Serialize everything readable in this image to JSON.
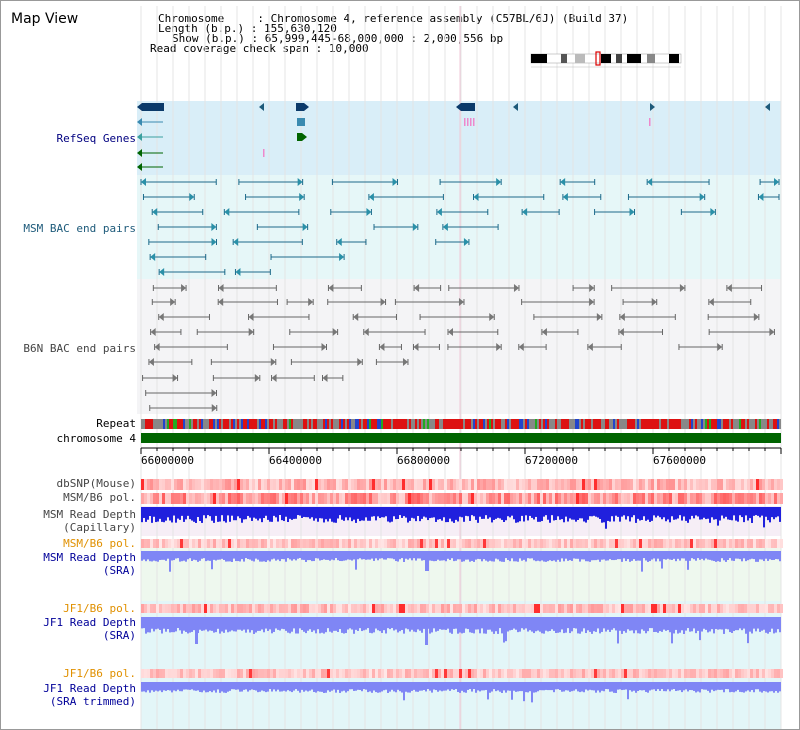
{
  "title": "Map View",
  "info": {
    "chromosome_label": "Chromosome",
    "chromosome_value": "Chromosome 4, reference assembly (C57BL/6J) (Build 37)",
    "length_label": "Length (b.p.)",
    "length_value": "155,630,120",
    "show_label": "Show (b.p.)",
    "show_value": "65,999,445-68,000,000 : 2,000,556 bp",
    "coverage_label": "Read coverage check span",
    "coverage_value": "10,000"
  },
  "tracks": {
    "refseq": "RefSeq Genes",
    "msm_bac": "MSM BAC end pairs",
    "b6n_bac": "B6N BAC end pairs",
    "repeat": "Repeat",
    "chromosome": "chromosome 4",
    "dbsnp": "dbSNP(Mouse)",
    "msm_b6_pol_1": "MSM/B6 pol.",
    "msm_read_depth_cap_1": "MSM Read Depth",
    "msm_read_depth_cap_2": "(Capillary)",
    "msm_b6_pol_2": "MSM/B6 pol.",
    "msm_read_depth_sra_1": "MSM Read Depth",
    "msm_read_depth_sra_2": "(SRA)",
    "jf1_b6_pol_1": "JF1/B6 pol.",
    "jf1_read_depth_sra_1": "JF1 Read Depth",
    "jf1_read_depth_sra_2": "(SRA)",
    "jf1_b6_pol_2": "JF1/B6 pol.",
    "jf1_read_depth_trim_1": "JF1 Read Depth",
    "jf1_read_depth_trim_2": "(SRA trimmed)"
  },
  "axis": {
    "ticks": [
      "66000000",
      "66400000",
      "66800000",
      "67200000",
      "67600000"
    ],
    "range": [
      65999445,
      68000000
    ]
  },
  "colors": {
    "refseq_bg": "#d9eef8",
    "msm_bg": "#e6f7f8",
    "b6n_bg": "#f4f4f6",
    "chromosome": "#006400",
    "pol": "#ee3030",
    "depth": "#2020dd",
    "depth_light": "#7f86f5"
  }
}
